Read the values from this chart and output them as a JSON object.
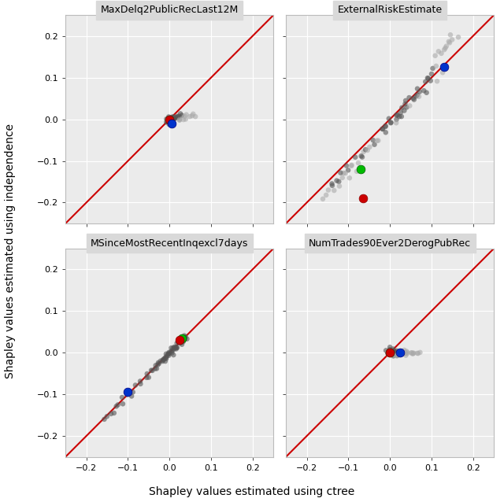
{
  "subplots": [
    {
      "title": "MaxDelq2PublicRecLast12M",
      "gray_x": [
        0.0,
        0.005,
        -0.005,
        0.01,
        -0.01,
        0.015,
        0.02,
        0.025,
        0.03,
        0.035,
        0.04,
        0.05,
        0.06,
        0.005,
        0.01,
        0.015,
        0.02,
        0.025,
        0.0,
        -0.005,
        0.01,
        0.005,
        0.0,
        -0.005,
        0.0,
        0.005,
        0.01,
        0.0,
        0.005,
        0.015,
        0.02,
        0.025,
        0.005,
        0.01,
        0.0,
        0.005,
        0.02,
        0.03,
        0.04,
        0.05,
        0.06
      ],
      "gray_y": [
        0.005,
        0.01,
        0.0,
        0.005,
        -0.005,
        0.005,
        0.005,
        0.005,
        0.01,
        0.01,
        0.01,
        0.01,
        0.01,
        0.005,
        0.0,
        0.005,
        0.0,
        0.0,
        0.0,
        -0.005,
        0.0,
        0.0,
        -0.005,
        0.0,
        -0.01,
        0.005,
        0.005,
        -0.005,
        0.0,
        0.005,
        0.005,
        0.01,
        -0.005,
        0.0,
        -0.01,
        -0.005,
        0.0,
        0.0,
        0.0,
        0.01,
        0.01
      ],
      "blue_x": [
        0.005
      ],
      "blue_y": [
        -0.01
      ],
      "green_x": [
        0.0
      ],
      "green_y": [
        0.0
      ],
      "red_x": [
        0.0
      ],
      "red_y": [
        0.0
      ],
      "xlim": [
        -0.25,
        0.25
      ],
      "ylim": [
        -0.25,
        0.25
      ]
    },
    {
      "title": "ExternalRiskEstimate",
      "gray_x": [
        0.14,
        0.15,
        0.16,
        0.13,
        0.14,
        0.15,
        0.12,
        0.13,
        0.11,
        0.12,
        0.13,
        0.1,
        0.11,
        0.09,
        0.1,
        0.08,
        0.09,
        0.07,
        0.06,
        0.07,
        0.05,
        0.06,
        0.04,
        0.05,
        0.03,
        0.04,
        0.02,
        0.03,
        0.01,
        0.02,
        0.0,
        0.01,
        -0.01,
        0.0,
        -0.02,
        -0.01,
        -0.03,
        -0.04,
        -0.05,
        -0.06,
        -0.07,
        -0.08,
        -0.09,
        -0.1,
        -0.11,
        -0.12,
        -0.13,
        -0.14,
        0.1,
        0.08,
        0.06,
        0.04,
        0.02,
        0.0,
        -0.02,
        -0.04,
        -0.06,
        -0.08,
        -0.1,
        -0.12,
        -0.14,
        -0.15,
        -0.13,
        -0.11,
        -0.09,
        -0.07,
        -0.05,
        -0.03,
        -0.01,
        0.01,
        0.03,
        0.05,
        0.07,
        0.09,
        0.11,
        0.13,
        -0.15,
        -0.16,
        -0.12,
        -0.14,
        -0.1,
        -0.08
      ],
      "gray_y": [
        0.19,
        0.2,
        0.2,
        0.18,
        0.18,
        0.19,
        0.16,
        0.17,
        0.15,
        0.16,
        0.17,
        0.12,
        0.13,
        0.1,
        0.11,
        0.09,
        0.1,
        0.07,
        0.06,
        0.08,
        0.05,
        0.06,
        0.04,
        0.05,
        0.03,
        0.04,
        0.02,
        0.02,
        0.01,
        0.01,
        0.0,
        0.0,
        -0.02,
        -0.01,
        -0.03,
        -0.02,
        -0.05,
        -0.06,
        -0.07,
        -0.08,
        -0.09,
        -0.1,
        -0.11,
        -0.12,
        -0.13,
        -0.14,
        -0.15,
        -0.16,
        0.09,
        0.07,
        0.05,
        0.03,
        0.01,
        -0.01,
        -0.03,
        -0.05,
        -0.07,
        -0.09,
        -0.11,
        -0.13,
        -0.15,
        -0.17,
        -0.15,
        -0.13,
        -0.11,
        -0.09,
        -0.07,
        -0.05,
        -0.03,
        -0.01,
        0.01,
        0.03,
        0.05,
        0.07,
        0.09,
        0.11,
        -0.18,
        -0.19,
        -0.16,
        -0.17,
        -0.14,
        -0.12
      ],
      "blue_x": [
        0.13
      ],
      "blue_y": [
        0.125
      ],
      "green_x": [
        -0.07
      ],
      "green_y": [
        -0.12
      ],
      "red_x": [
        -0.065
      ],
      "red_y": [
        -0.19
      ],
      "xlim": [
        -0.25,
        0.25
      ],
      "ylim": [
        -0.25,
        0.25
      ]
    },
    {
      "title": "MSinceMostRecentInqexcl7days",
      "gray_x": [
        0.03,
        0.035,
        0.025,
        0.04,
        0.03,
        0.035,
        0.025,
        0.03,
        0.035,
        0.04,
        0.02,
        0.025,
        0.03,
        0.035,
        0.015,
        0.02,
        0.025,
        0.03,
        0.01,
        0.015,
        0.02,
        0.025,
        0.005,
        0.01,
        0.015,
        0.02,
        0.0,
        0.005,
        0.01,
        0.015,
        -0.005,
        0.0,
        0.005,
        0.01,
        -0.01,
        -0.005,
        0.0,
        0.005,
        -0.015,
        -0.01,
        -0.005,
        -0.02,
        -0.015,
        -0.01,
        -0.025,
        -0.02,
        -0.015,
        -0.03,
        -0.025,
        -0.02,
        -0.035,
        -0.03,
        -0.04,
        -0.045,
        -0.05,
        -0.06,
        -0.07,
        -0.08,
        -0.09,
        -0.1,
        -0.11,
        -0.12,
        -0.13,
        -0.14,
        -0.15,
        -0.16,
        -0.13,
        -0.11,
        -0.09,
        -0.07,
        -0.05,
        -0.03,
        -0.01
      ],
      "gray_y": [
        0.035,
        0.04,
        0.03,
        0.04,
        0.035,
        0.03,
        0.025,
        0.025,
        0.03,
        0.035,
        0.02,
        0.025,
        0.03,
        0.03,
        0.015,
        0.02,
        0.025,
        0.025,
        0.01,
        0.015,
        0.02,
        0.02,
        0.005,
        0.01,
        0.015,
        0.015,
        0.0,
        0.005,
        0.01,
        0.01,
        -0.005,
        0.0,
        0.005,
        0.005,
        -0.01,
        -0.005,
        0.0,
        0.0,
        -0.015,
        -0.01,
        -0.005,
        -0.02,
        -0.015,
        -0.01,
        -0.025,
        -0.02,
        -0.015,
        -0.03,
        -0.025,
        -0.02,
        -0.035,
        -0.03,
        -0.04,
        -0.045,
        -0.05,
        -0.06,
        -0.07,
        -0.08,
        -0.09,
        -0.1,
        -0.11,
        -0.12,
        -0.13,
        -0.14,
        -0.15,
        -0.16,
        -0.14,
        -0.12,
        -0.1,
        -0.08,
        -0.06,
        -0.04,
        -0.02
      ],
      "blue_x": [
        -0.1
      ],
      "blue_y": [
        -0.095
      ],
      "green_x": [
        0.03
      ],
      "green_y": [
        0.035
      ],
      "red_x": [
        0.025
      ],
      "red_y": [
        0.03
      ],
      "xlim": [
        -0.25,
        0.25
      ],
      "ylim": [
        -0.25,
        0.25
      ]
    },
    {
      "title": "NumTrades90Ever2DerogPubRec",
      "gray_x": [
        0.0,
        0.005,
        0.01,
        0.015,
        0.02,
        0.025,
        0.03,
        0.035,
        0.04,
        0.045,
        0.05,
        0.055,
        0.06,
        0.065,
        0.07,
        -0.005,
        0.0,
        0.005,
        0.01,
        0.015,
        0.02,
        0.025,
        0.03,
        0.035,
        0.04,
        -0.01,
        -0.005,
        0.0,
        0.005,
        0.01,
        0.015,
        0.02,
        0.025,
        -0.005,
        0.0,
        0.005,
        0.01,
        0.015,
        0.0,
        0.005,
        0.01,
        0.0,
        0.005,
        0.0,
        0.005,
        0.0,
        0.005,
        0.01,
        0.015,
        0.02,
        0.025,
        0.03,
        0.035,
        0.04,
        0.05,
        0.06,
        0.07
      ],
      "gray_y": [
        0.0,
        0.0,
        0.0,
        0.0,
        0.0,
        0.0,
        0.0,
        0.0,
        0.0,
        0.0,
        0.0,
        0.0,
        0.0,
        0.0,
        0.0,
        0.0,
        0.0,
        0.0,
        0.0,
        0.0,
        0.0,
        0.0,
        0.0,
        0.0,
        0.0,
        0.0,
        0.0,
        0.0,
        0.0,
        0.0,
        0.0,
        0.0,
        0.0,
        0.0,
        0.0,
        0.0,
        0.0,
        0.0,
        0.0,
        0.0,
        0.0,
        0.0,
        0.0,
        0.0,
        0.005,
        0.005,
        0.005,
        0.0,
        -0.005,
        -0.005,
        0.0,
        0.0,
        0.0,
        0.0,
        0.0,
        0.0,
        0.0
      ],
      "blue_x": [
        0.025
      ],
      "blue_y": [
        0.0
      ],
      "green_x": [
        0.0
      ],
      "green_y": [
        0.0
      ],
      "red_x": [
        0.0
      ],
      "red_y": [
        0.0
      ],
      "xlim": [
        -0.25,
        0.25
      ],
      "ylim": [
        -0.25,
        0.25
      ]
    }
  ],
  "xlabel": "Shapley values estimated using ctree",
  "ylabel": "Shapley values estimated using independence",
  "axis_ticks": [
    -0.2,
    -0.1,
    0.0,
    0.1,
    0.2
  ],
  "fig_bg": "#ffffff",
  "panel_bg": "#ebebeb",
  "strip_bg": "#d9d9d9",
  "grid_color": "#ffffff",
  "gray_color_dark": "#555555",
  "gray_color_light": "#aaaaaa",
  "gray_alpha": 0.6,
  "gray_size": 22,
  "highlight_size": 60,
  "highlight_marker": "o",
  "line_color": "#cc0000",
  "line_width": 1.5,
  "title_fontsize": 9,
  "label_fontsize": 10,
  "tick_fontsize": 8
}
